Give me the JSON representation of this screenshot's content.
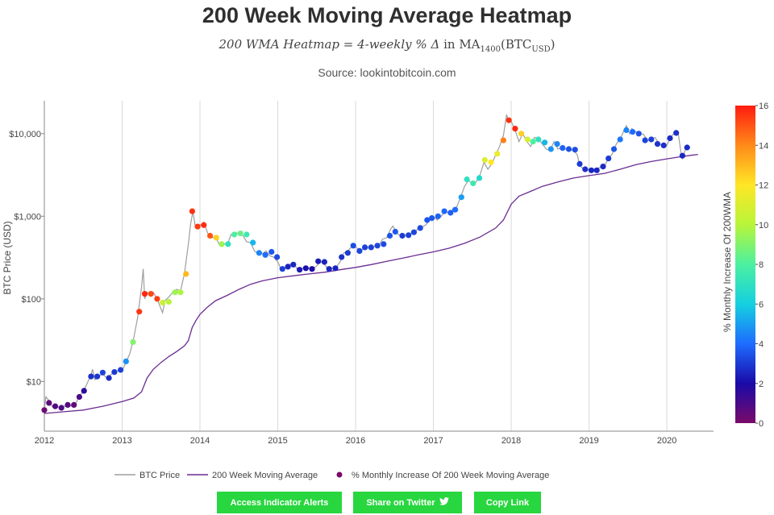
{
  "header": {
    "title": "200 Week Moving Average Heatmap",
    "subtitle_italic": "200 WMA Heatmap = 4-weekly % Δ",
    "subtitle_in": "in",
    "subtitle_ma": "MA",
    "subtitle_ma_sub": "1400",
    "subtitle_btc": "(BTC",
    "subtitle_btc_sub": "USD",
    "subtitle_close": ")",
    "source": "Source: lookintobitcoin.com"
  },
  "buttons": {
    "alerts": "Access Indicator Alerts",
    "twitter": "Share on Twitter",
    "copy": "Copy Link"
  },
  "colors": {
    "price_line": "#9e9e9e",
    "wma_line": "#6a2c91",
    "button": "#28d63f",
    "gridline": "#d9d9d9"
  },
  "chart_data": {
    "type": "scatter",
    "ylabel": "BTC Price (USD)",
    "yscale": "log",
    "ylim": [
      2.5,
      25000
    ],
    "xlim": [
      2012.0,
      2020.6
    ],
    "x_ticks": [
      "2012",
      "2013",
      "2014",
      "2015",
      "2016",
      "2017",
      "2018",
      "2019",
      "2020"
    ],
    "y_ticks": [
      "$10",
      "$100",
      "$1,000",
      "$10,000"
    ],
    "y_tick_values": [
      10,
      100,
      1000,
      10000
    ],
    "colorbar": {
      "label": "% Monthly Increase Of 200WMA",
      "min": 0,
      "max": 16,
      "ticks": [
        "0",
        "2",
        "4",
        "6",
        "8",
        "10",
        "12",
        "14",
        "16"
      ],
      "colorscale": [
        "#7a0a6a",
        "#1a0aa8",
        "#1e6cff",
        "#15d0e0",
        "#4cf0a0",
        "#b8f53a",
        "#ffe626",
        "#ff8a1a",
        "#ff1c10"
      ]
    },
    "legend": {
      "position": "bottom",
      "items": [
        "BTC Price",
        "200 Week Moving Average",
        "% Monthly Increase Of 200 Week Moving Average"
      ]
    },
    "btc_price": [
      [
        2012.0,
        4.5
      ],
      [
        2012.02,
        6.5
      ],
      [
        2012.05,
        6.0
      ],
      [
        2012.1,
        5.0
      ],
      [
        2012.15,
        4.9
      ],
      [
        2012.2,
        4.9
      ],
      [
        2012.25,
        5.0
      ],
      [
        2012.3,
        5.0
      ],
      [
        2012.35,
        5.1
      ],
      [
        2012.4,
        5.3
      ],
      [
        2012.45,
        6.7
      ],
      [
        2012.5,
        7.5
      ],
      [
        2012.55,
        9.5
      ],
      [
        2012.6,
        12.0
      ],
      [
        2012.62,
        14.0
      ],
      [
        2012.65,
        10.5
      ],
      [
        2012.7,
        11.5
      ],
      [
        2012.75,
        12.5
      ],
      [
        2012.8,
        11.0
      ],
      [
        2012.85,
        12.0
      ],
      [
        2012.9,
        13.0
      ],
      [
        2012.95,
        13.5
      ],
      [
        2013.0,
        13.5
      ],
      [
        2013.05,
        17.0
      ],
      [
        2013.1,
        22.0
      ],
      [
        2013.15,
        34.0
      ],
      [
        2013.2,
        60.0
      ],
      [
        2013.25,
        140.0
      ],
      [
        2013.27,
        230.0
      ],
      [
        2013.29,
        100.0
      ],
      [
        2013.32,
        120.0
      ],
      [
        2013.35,
        115.0
      ],
      [
        2013.4,
        120.0
      ],
      [
        2013.45,
        100.0
      ],
      [
        2013.5,
        75.0
      ],
      [
        2013.52,
        68.0
      ],
      [
        2013.55,
        95.0
      ],
      [
        2013.6,
        105.0
      ],
      [
        2013.65,
        120.0
      ],
      [
        2013.7,
        130.0
      ],
      [
        2013.75,
        125.0
      ],
      [
        2013.8,
        200.0
      ],
      [
        2013.85,
        450.0
      ],
      [
        2013.88,
        800.0
      ],
      [
        2013.91,
        1150.0
      ],
      [
        2013.94,
        750.0
      ],
      [
        2013.97,
        700.0
      ],
      [
        2014.0,
        770.0
      ],
      [
        2014.05,
        850.0
      ],
      [
        2014.1,
        620.0
      ],
      [
        2014.15,
        550.0
      ],
      [
        2014.2,
        560.0
      ],
      [
        2014.25,
        450.0
      ],
      [
        2014.3,
        470.0
      ],
      [
        2014.35,
        450.0
      ],
      [
        2014.4,
        600.0
      ],
      [
        2014.45,
        640.0
      ],
      [
        2014.5,
        610.0
      ],
      [
        2014.55,
        590.0
      ],
      [
        2014.6,
        490.0
      ],
      [
        2014.65,
        480.0
      ],
      [
        2014.7,
        380.0
      ],
      [
        2014.75,
        350.0
      ],
      [
        2014.8,
        350.0
      ],
      [
        2014.85,
        380.0
      ],
      [
        2014.9,
        330.0
      ],
      [
        2014.95,
        320.0
      ],
      [
        2015.0,
        280.0
      ],
      [
        2015.05,
        220.0
      ],
      [
        2015.1,
        240.0
      ],
      [
        2015.15,
        260.0
      ],
      [
        2015.2,
        270.0
      ],
      [
        2015.25,
        230.0
      ],
      [
        2015.3,
        230.0
      ],
      [
        2015.35,
        240.0
      ],
      [
        2015.4,
        235.0
      ],
      [
        2015.45,
        230.0
      ],
      [
        2015.5,
        250.0
      ],
      [
        2015.55,
        285.0
      ],
      [
        2015.6,
        260.0
      ],
      [
        2015.65,
        230.0
      ],
      [
        2015.7,
        235.0
      ],
      [
        2015.75,
        240.0
      ],
      [
        2015.8,
        280.0
      ],
      [
        2015.85,
        360.0
      ],
      [
        2015.9,
        380.0
      ],
      [
        2015.95,
        430.0
      ],
      [
        2016.0,
        430.0
      ],
      [
        2016.05,
        380.0
      ],
      [
        2016.1,
        400.0
      ],
      [
        2016.15,
        415.0
      ],
      [
        2016.2,
        420.0
      ],
      [
        2016.25,
        430.0
      ],
      [
        2016.3,
        450.0
      ],
      [
        2016.35,
        530.0
      ],
      [
        2016.4,
        550.0
      ],
      [
        2016.45,
        700.0
      ],
      [
        2016.48,
        760.0
      ],
      [
        2016.52,
        650.0
      ],
      [
        2016.55,
        600.0
      ],
      [
        2016.6,
        580.0
      ],
      [
        2016.65,
        590.0
      ],
      [
        2016.7,
        610.0
      ],
      [
        2016.75,
        640.0
      ],
      [
        2016.8,
        700.0
      ],
      [
        2016.85,
        740.0
      ],
      [
        2016.9,
        780.0
      ],
      [
        2016.95,
        900.0
      ],
      [
        2017.0,
        990.0
      ],
      [
        2017.05,
        900.0
      ],
      [
        2017.1,
        1000.0
      ],
      [
        2017.15,
        1150.0
      ],
      [
        2017.2,
        1100.0
      ],
      [
        2017.25,
        1200.0
      ],
      [
        2017.3,
        1300.0
      ],
      [
        2017.35,
        1700.0
      ],
      [
        2017.4,
        2300.0
      ],
      [
        2017.45,
        2700.0
      ],
      [
        2017.5,
        2500.0
      ],
      [
        2017.55,
        2600.0
      ],
      [
        2017.6,
        3200.0
      ],
      [
        2017.65,
        4500.0
      ],
      [
        2017.7,
        3700.0
      ],
      [
        2017.75,
        4300.0
      ],
      [
        2017.8,
        5500.0
      ],
      [
        2017.85,
        7000.0
      ],
      [
        2017.9,
        9500.0
      ],
      [
        2017.94,
        17000.0
      ],
      [
        2017.97,
        14000.0
      ],
      [
        2018.0,
        14000.0
      ],
      [
        2018.05,
        11000.0
      ],
      [
        2018.1,
        8000.0
      ],
      [
        2018.15,
        10000.0
      ],
      [
        2018.2,
        8000.0
      ],
      [
        2018.25,
        7000.0
      ],
      [
        2018.3,
        9000.0
      ],
      [
        2018.35,
        8500.0
      ],
      [
        2018.4,
        7500.0
      ],
      [
        2018.45,
        6500.0
      ],
      [
        2018.5,
        6300.0
      ],
      [
        2018.55,
        8000.0
      ],
      [
        2018.6,
        6500.0
      ],
      [
        2018.65,
        6800.0
      ],
      [
        2018.7,
        6500.0
      ],
      [
        2018.75,
        6400.0
      ],
      [
        2018.8,
        6300.0
      ],
      [
        2018.85,
        5500.0
      ],
      [
        2018.88,
        4100.0
      ],
      [
        2018.92,
        3800.0
      ],
      [
        2018.96,
        3500.0
      ],
      [
        2019.0,
        3700.0
      ],
      [
        2019.05,
        3500.0
      ],
      [
        2019.1,
        3800.0
      ],
      [
        2019.15,
        3900.0
      ],
      [
        2019.2,
        4100.0
      ],
      [
        2019.25,
        5000.0
      ],
      [
        2019.3,
        5700.0
      ],
      [
        2019.35,
        7500.0
      ],
      [
        2019.4,
        8500.0
      ],
      [
        2019.45,
        11000.0
      ],
      [
        2019.48,
        12500.0
      ],
      [
        2019.52,
        10000.0
      ],
      [
        2019.55,
        11500.0
      ],
      [
        2019.6,
        10500.0
      ],
      [
        2019.65,
        10000.0
      ],
      [
        2019.7,
        9800.0
      ],
      [
        2019.75,
        8300.0
      ],
      [
        2019.8,
        8500.0
      ],
      [
        2019.85,
        9000.0
      ],
      [
        2019.9,
        7500.0
      ],
      [
        2019.95,
        7300.0
      ],
      [
        2020.0,
        7200.0
      ],
      [
        2020.05,
        9000.0
      ],
      [
        2020.1,
        10300.0
      ],
      [
        2020.15,
        9500.0
      ],
      [
        2020.18,
        6000.0
      ],
      [
        2020.2,
        5000.0
      ],
      [
        2020.24,
        6500.0
      ],
      [
        2020.28,
        7000.0
      ],
      [
        2020.3,
        6800.0
      ]
    ],
    "wma_200": [
      [
        2012.0,
        4.1
      ],
      [
        2012.25,
        4.3
      ],
      [
        2012.5,
        4.5
      ],
      [
        2012.75,
        5.0
      ],
      [
        2013.0,
        5.7
      ],
      [
        2013.15,
        6.3
      ],
      [
        2013.25,
        7.5
      ],
      [
        2013.32,
        11.0
      ],
      [
        2013.4,
        14.0
      ],
      [
        2013.5,
        17.0
      ],
      [
        2013.6,
        20.0
      ],
      [
        2013.7,
        23.0
      ],
      [
        2013.8,
        27.0
      ],
      [
        2013.85,
        31.0
      ],
      [
        2013.9,
        45.0
      ],
      [
        2013.95,
        55.0
      ],
      [
        2014.0,
        65.0
      ],
      [
        2014.1,
        80.0
      ],
      [
        2014.2,
        95.0
      ],
      [
        2014.35,
        110.0
      ],
      [
        2014.5,
        130.0
      ],
      [
        2014.65,
        150.0
      ],
      [
        2014.8,
        165.0
      ],
      [
        2015.0,
        180.0
      ],
      [
        2015.2,
        190.0
      ],
      [
        2015.4,
        200.0
      ],
      [
        2015.6,
        210.0
      ],
      [
        2015.8,
        225.0
      ],
      [
        2016.0,
        240.0
      ],
      [
        2016.2,
        260.0
      ],
      [
        2016.4,
        285.0
      ],
      [
        2016.6,
        310.0
      ],
      [
        2016.8,
        340.0
      ],
      [
        2017.0,
        370.0
      ],
      [
        2017.2,
        410.0
      ],
      [
        2017.4,
        470.0
      ],
      [
        2017.6,
        560.0
      ],
      [
        2017.8,
        720.0
      ],
      [
        2017.9,
        900.0
      ],
      [
        2018.0,
        1400.0
      ],
      [
        2018.1,
        1750.0
      ],
      [
        2018.25,
        2000.0
      ],
      [
        2018.4,
        2300.0
      ],
      [
        2018.6,
        2600.0
      ],
      [
        2018.8,
        2900.0
      ],
      [
        2019.0,
        3100.0
      ],
      [
        2019.2,
        3300.0
      ],
      [
        2019.4,
        3700.0
      ],
      [
        2019.6,
        4200.0
      ],
      [
        2019.8,
        4600.0
      ],
      [
        2020.0,
        4950.0
      ],
      [
        2020.15,
        5200.0
      ],
      [
        2020.3,
        5450.0
      ],
      [
        2020.4,
        5600.0
      ]
    ],
    "heat_points": [
      [
        2012.0,
        4.5,
        0.3
      ],
      [
        2012.06,
        5.5,
        0.6
      ],
      [
        2012.14,
        5.0,
        0.8
      ],
      [
        2012.22,
        4.8,
        0.9
      ],
      [
        2012.3,
        5.2,
        0.8
      ],
      [
        2012.38,
        5.2,
        0.5
      ],
      [
        2012.45,
        6.5,
        1.0
      ],
      [
        2012.51,
        7.7,
        1.6
      ],
      [
        2012.6,
        11.5,
        2.8
      ],
      [
        2012.68,
        11.5,
        2.9
      ],
      [
        2012.75,
        12.8,
        3.2
      ],
      [
        2012.83,
        11.0,
        2.7
      ],
      [
        2012.9,
        13.0,
        3.0
      ],
      [
        2012.98,
        13.8,
        3.1
      ],
      [
        2013.05,
        17.5,
        4.8
      ],
      [
        2013.14,
        30.0,
        9.0
      ],
      [
        2013.22,
        70.0,
        15.5
      ],
      [
        2013.29,
        115.0,
        15.8
      ],
      [
        2013.37,
        115.0,
        15.2
      ],
      [
        2013.45,
        100.0,
        15.4
      ],
      [
        2013.52,
        90.0,
        10.5
      ],
      [
        2013.6,
        92.0,
        10.0
      ],
      [
        2013.68,
        120.0,
        9.5
      ],
      [
        2013.75,
        120.0,
        9.8
      ],
      [
        2013.82,
        200.0,
        13.0
      ],
      [
        2013.9,
        1150.0,
        15.6
      ],
      [
        2013.97,
        750.0,
        15.5
      ],
      [
        2014.05,
        780.0,
        15.7
      ],
      [
        2014.13,
        580.0,
        15.0
      ],
      [
        2014.21,
        550.0,
        12.5
      ],
      [
        2014.28,
        460.0,
        9.5
      ],
      [
        2014.36,
        460.0,
        7.0
      ],
      [
        2014.44,
        600.0,
        8.0
      ],
      [
        2014.52,
        620.0,
        8.5
      ],
      [
        2014.6,
        600.0,
        7.5
      ],
      [
        2014.68,
        480.0,
        5.5
      ],
      [
        2014.76,
        360.0,
        4.5
      ],
      [
        2014.84,
        340.0,
        4.0
      ],
      [
        2014.92,
        370.0,
        3.6
      ],
      [
        2014.99,
        320.0,
        3.3
      ],
      [
        2015.06,
        230.0,
        3.1
      ],
      [
        2015.13,
        245.0,
        2.5
      ],
      [
        2015.2,
        260.0,
        2.6
      ],
      [
        2015.28,
        225.0,
        2.3
      ],
      [
        2015.36,
        235.0,
        2.1
      ],
      [
        2015.44,
        230.0,
        2.0
      ],
      [
        2015.52,
        285.0,
        2.3
      ],
      [
        2015.6,
        280.0,
        2.5
      ],
      [
        2015.66,
        230.0,
        2.6
      ],
      [
        2015.74,
        235.0,
        2.5
      ],
      [
        2015.82,
        320.0,
        2.8
      ],
      [
        2015.9,
        360.0,
        3.0
      ],
      [
        2015.97,
        440.0,
        3.4
      ],
      [
        2016.05,
        380.0,
        3.2
      ],
      [
        2016.12,
        420.0,
        3.1
      ],
      [
        2016.2,
        420.0,
        3.1
      ],
      [
        2016.28,
        440.0,
        3.2
      ],
      [
        2016.36,
        460.0,
        3.3
      ],
      [
        2016.44,
        580.0,
        3.5
      ],
      [
        2016.51,
        650.0,
        3.6
      ],
      [
        2016.6,
        580.0,
        3.0
      ],
      [
        2016.68,
        590.0,
        3.1
      ],
      [
        2016.75,
        640.0,
        3.2
      ],
      [
        2016.83,
        720.0,
        3.3
      ],
      [
        2016.92,
        900.0,
        3.5
      ],
      [
        2016.98,
        950.0,
        3.6
      ],
      [
        2017.06,
        1000.0,
        3.8
      ],
      [
        2017.14,
        1150.0,
        3.9
      ],
      [
        2017.22,
        1100.0,
        3.7
      ],
      [
        2017.28,
        1200.0,
        4.0
      ],
      [
        2017.36,
        1700.0,
        5.0
      ],
      [
        2017.43,
        2800.0,
        7.0
      ],
      [
        2017.51,
        2500.0,
        7.5
      ],
      [
        2017.59,
        2900.0,
        6.5
      ],
      [
        2017.66,
        4800.0,
        11.0
      ],
      [
        2017.74,
        4500.0,
        12.0
      ],
      [
        2017.82,
        5700.0,
        11.5
      ],
      [
        2017.9,
        8300.0,
        14.2
      ],
      [
        2017.97,
        14500.0,
        15.6
      ],
      [
        2018.05,
        11500.0,
        15.8
      ],
      [
        2018.13,
        10000.0,
        12.5
      ],
      [
        2018.21,
        8500.0,
        11.0
      ],
      [
        2018.28,
        8000.0,
        8.0
      ],
      [
        2018.35,
        8500.0,
        7.0
      ],
      [
        2018.43,
        7800.0,
        5.5
      ],
      [
        2018.51,
        6500.0,
        4.8
      ],
      [
        2018.59,
        7500.0,
        4.5
      ],
      [
        2018.66,
        6700.0,
        3.8
      ],
      [
        2018.74,
        6500.0,
        3.5
      ],
      [
        2018.82,
        6400.0,
        3.4
      ],
      [
        2018.88,
        4300.0,
        3.0
      ],
      [
        2018.95,
        3700.0,
        2.8
      ],
      [
        2019.03,
        3600.0,
        2.6
      ],
      [
        2019.1,
        3600.0,
        2.6
      ],
      [
        2019.18,
        4000.0,
        2.7
      ],
      [
        2019.25,
        5000.0,
        3.0
      ],
      [
        2019.32,
        6500.0,
        3.5
      ],
      [
        2019.4,
        8500.0,
        4.2
      ],
      [
        2019.48,
        11000.0,
        4.5
      ],
      [
        2019.56,
        10500.0,
        4.0
      ],
      [
        2019.64,
        10000.0,
        3.5
      ],
      [
        2019.72,
        8300.0,
        3.2
      ],
      [
        2019.8,
        8500.0,
        3.1
      ],
      [
        2019.88,
        7500.0,
        2.9
      ],
      [
        2019.96,
        7200.0,
        2.8
      ],
      [
        2020.04,
        8800.0,
        2.7
      ],
      [
        2020.12,
        10200.0,
        2.8
      ],
      [
        2020.2,
        5400.0,
        2.6
      ],
      [
        2020.26,
        6800.0,
        2.7
      ]
    ]
  }
}
